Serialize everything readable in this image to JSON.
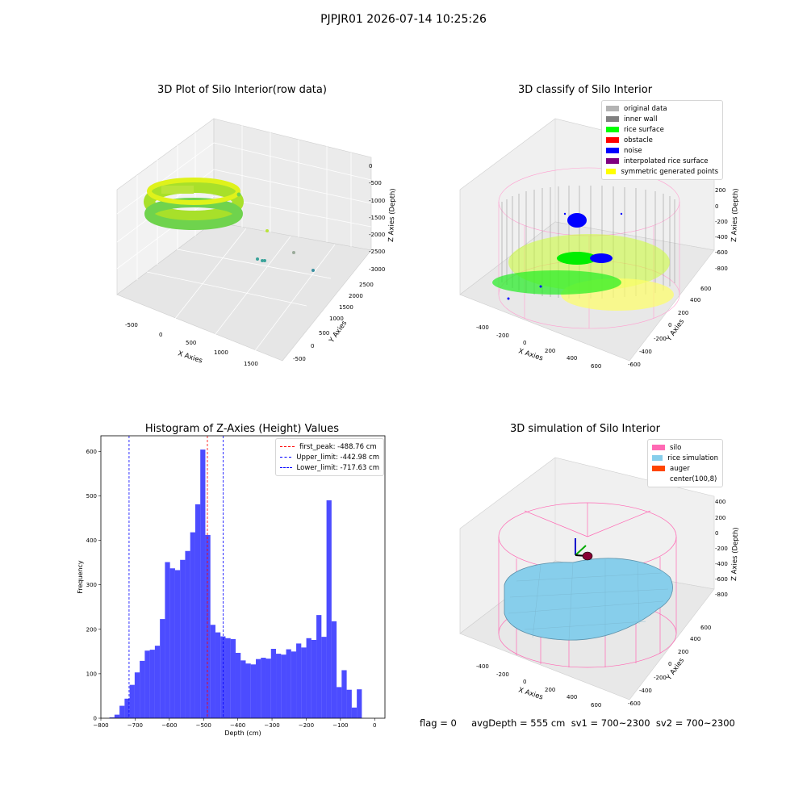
{
  "suptitle": "PJPJR01 2026-07-14 10:25:26",
  "panels": {
    "raw": {
      "title": "3D Plot of Silo Interior(row data)",
      "xlabel": "X Axies",
      "ylabel": "Y Axies",
      "zlabel": "Z Axies (Depth)",
      "xticks": [
        "-500",
        "0",
        "500",
        "1000",
        "1500"
      ],
      "yticks": [
        "-500",
        "0",
        "500",
        "1000",
        "1500",
        "2000",
        "2500"
      ],
      "zticks": [
        "0",
        "-500",
        "-1000",
        "-1500",
        "-2000",
        "-2500",
        "-3000"
      ]
    },
    "classify": {
      "title": "3D classify of Silo Interior",
      "xlabel": "X Axies",
      "ylabel": "Y Axies",
      "zlabel": "Z Axies (Depth)",
      "xticks": [
        "-400",
        "-200",
        "0",
        "200",
        "400",
        "600"
      ],
      "yticks": [
        "-600",
        "-400",
        "-200",
        "0",
        "200",
        "400",
        "600"
      ],
      "zticks": [
        "200",
        "0",
        "-200",
        "-400",
        "-600",
        "-800"
      ],
      "legend": [
        {
          "label": "original data",
          "color": "#b3b3b3"
        },
        {
          "label": "inner wall",
          "color": "#808080"
        },
        {
          "label": "rice surface",
          "color": "#00ff00"
        },
        {
          "label": "obstacle",
          "color": "#ff0000"
        },
        {
          "label": "noise",
          "color": "#0000ff"
        },
        {
          "label": "interpolated rice surface",
          "color": "#800080"
        },
        {
          "label": "symmetric generated points",
          "color": "#ffff00"
        }
      ]
    },
    "simulation": {
      "title": "3D simulation of Silo Interior",
      "xlabel": "X Axies",
      "ylabel": "Y Axies",
      "zlabel": "Z Axies (Depth)",
      "xticks": [
        "-400",
        "-200",
        "0",
        "200",
        "400",
        "600"
      ],
      "yticks": [
        "-600",
        "-400",
        "-200",
        "0",
        "200",
        "400",
        "600"
      ],
      "zticks": [
        "400",
        "200",
        "0",
        "-200",
        "-400",
        "-600",
        "-800"
      ],
      "legend": [
        {
          "label": "silo",
          "color": "#ff69b4"
        },
        {
          "label": "rice simulation",
          "color": "#87ceeb"
        },
        {
          "label": "auger",
          "color": "#ff4500"
        },
        {
          "label": "center(100,8)",
          "color": ""
        }
      ]
    }
  },
  "chart_data": {
    "type": "bar",
    "title": "Histogram of Z-Axies (Height) Values",
    "xlabel": "Depth (cm)",
    "ylabel": "Frequency",
    "xlim": [
      -800,
      30
    ],
    "ylim": [
      0,
      635
    ],
    "xticks": [
      -800,
      -700,
      -600,
      -500,
      -400,
      -300,
      -200,
      -100,
      0
    ],
    "yticks": [
      0,
      100,
      200,
      300,
      400,
      500,
      600
    ],
    "bar_color": "#0000ff",
    "bin_start": -775,
    "bin_width": 14.75,
    "values": [
      2,
      8,
      28,
      44,
      75,
      103,
      129,
      152,
      154,
      163,
      223,
      351,
      337,
      333,
      356,
      376,
      418,
      481,
      604,
      412,
      210,
      193,
      184,
      180,
      178,
      147,
      130,
      123,
      121,
      133,
      136,
      134,
      156,
      145,
      143,
      155,
      150,
      168,
      159,
      180,
      176,
      232,
      183,
      490,
      218,
      70,
      108,
      64,
      24,
      65
    ],
    "vlines": [
      {
        "label": "first_peak: -488.76 cm",
        "x": -488.76,
        "color": "#ff0000"
      },
      {
        "label": "Upper_limit: -442.98 cm",
        "x": -442.98,
        "color": "#0000ff"
      },
      {
        "label": "Lower_limit: -717.63 cm",
        "x": -717.63,
        "color": "#0000ff"
      }
    ]
  },
  "footer": "flag = 0     avgDepth = 555 cm  sv1 = 700~2300  sv2 = 700~2300"
}
